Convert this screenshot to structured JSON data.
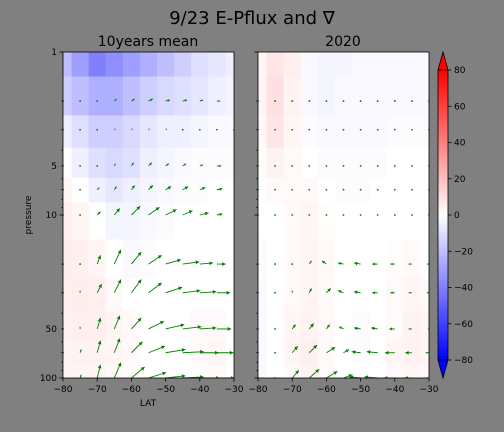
{
  "figure": {
    "suptitle": "9/23 E-Pflux and ∇",
    "background": "#808080",
    "arrow_color": "#008000"
  },
  "chart_data": [
    {
      "type": "heatmap",
      "title": "10years mean",
      "xlabel": "LAT",
      "ylabel": "pressure",
      "xlim": [
        -80,
        -30
      ],
      "ylim": [
        100,
        1
      ],
      "yscale": "log",
      "x_ticks": [
        -80,
        -70,
        -60,
        -50,
        -40,
        -30
      ],
      "x_tick_labels": [
        "−80",
        "−70",
        "−60",
        "−50",
        "−40",
        "−30"
      ],
      "y_ticks": [
        1,
        5,
        10,
        50,
        100
      ],
      "y_tick_labels": [
        "1",
        "5",
        "10",
        "50",
        "100"
      ],
      "field": {
        "lat": [
          -80,
          -75,
          -70,
          -65,
          -60,
          -55,
          -50,
          -45,
          -40,
          -35,
          -30
        ],
        "levels": [
          1,
          2,
          3,
          5,
          7,
          10,
          20,
          30,
          50,
          70,
          100
        ],
        "values": [
          [
            -20,
            -30,
            -40,
            -35,
            -30,
            -25,
            -20,
            -15,
            -10,
            -8,
            -5
          ],
          [
            -15,
            -20,
            -25,
            -25,
            -20,
            -15,
            -12,
            -10,
            -8,
            -5,
            -3
          ],
          [
            -5,
            -10,
            -15,
            -15,
            -12,
            -8,
            -5,
            -5,
            -3,
            -2,
            -2
          ],
          [
            0,
            -5,
            -10,
            -12,
            -10,
            -5,
            -3,
            -2,
            -1,
            -1,
            -1
          ],
          [
            3,
            0,
            -5,
            -8,
            -5,
            -3,
            -2,
            -1,
            -1,
            0,
            0
          ],
          [
            5,
            3,
            0,
            -3,
            -3,
            -2,
            -1,
            0,
            0,
            0,
            0
          ],
          [
            6,
            5,
            3,
            0,
            -2,
            -1,
            0,
            0,
            0,
            0,
            0
          ],
          [
            5,
            6,
            5,
            2,
            0,
            0,
            0,
            0,
            0,
            0,
            0
          ],
          [
            4,
            5,
            5,
            3,
            2,
            0,
            0,
            0,
            2,
            2,
            0
          ],
          [
            3,
            4,
            4,
            3,
            2,
            0,
            0,
            0,
            2,
            3,
            0
          ],
          [
            3,
            3,
            3,
            2,
            1,
            0,
            0,
            0,
            1,
            2,
            0
          ]
        ]
      },
      "arrows": {
        "lat": [
          -80,
          -75,
          -70,
          -65,
          -60,
          -55,
          -50,
          -45,
          -40,
          -35,
          -30
        ],
        "levels": [
          2,
          3,
          5,
          7,
          10,
          20,
          30,
          50,
          70,
          100
        ],
        "u": [
          [
            0,
            0,
            0,
            0.2,
            0.3,
            0.4,
            0.4,
            0.4,
            0.3,
            0.3,
            0.3
          ],
          [
            0,
            0,
            0,
            0.1,
            0.1,
            0.1,
            0.1,
            0.1,
            0,
            0,
            0
          ],
          [
            0,
            0,
            0,
            0.1,
            0.2,
            0.3,
            0.3,
            0.3,
            0.3,
            0.4,
            0.3
          ],
          [
            0,
            0,
            0.2,
            0.2,
            0.3,
            0.4,
            0.5,
            0.5,
            0.5,
            0.5,
            0.3
          ],
          [
            0,
            0,
            0.3,
            0.5,
            0.8,
            1.0,
            1.0,
            0.9,
            0.8,
            0.5,
            0.3
          ],
          [
            0,
            0,
            0.3,
            0.6,
            0.9,
            1.2,
            1.4,
            1.5,
            1.2,
            0.8,
            0.5
          ],
          [
            0,
            0,
            0.4,
            0.6,
            0.9,
            1.2,
            1.5,
            1.6,
            1.5,
            1.2,
            0.6
          ],
          [
            0,
            0,
            0.3,
            0.5,
            0.9,
            1.4,
            1.7,
            1.7,
            1.5,
            1.3,
            0.8
          ],
          [
            0,
            0.1,
            0.3,
            0.5,
            1.0,
            1.5,
            1.8,
            1.9,
            1.7,
            1.5,
            1.0
          ],
          [
            0,
            0.1,
            0.3,
            0.6,
            1.2,
            1.6,
            1.8,
            1.9,
            1.8,
            1.6,
            1.2
          ]
        ],
        "v": [
          [
            0,
            0,
            0,
            0.2,
            0.2,
            0.2,
            0.1,
            0.1,
            0.1,
            0,
            0
          ],
          [
            0,
            0,
            0,
            0.1,
            0.1,
            0.1,
            0.1,
            0,
            0,
            0,
            0
          ],
          [
            0,
            0,
            0,
            0.2,
            0.3,
            0.3,
            0.2,
            0.2,
            0.1,
            0,
            0
          ],
          [
            0,
            0,
            0.2,
            0.3,
            0.4,
            0.4,
            0.3,
            0.3,
            0.2,
            0.1,
            0
          ],
          [
            0,
            0,
            0.3,
            0.6,
            0.8,
            0.7,
            0.5,
            0.4,
            0.2,
            0.1,
            0
          ],
          [
            0,
            0.1,
            0.8,
            1.3,
            1.1,
            0.8,
            0.4,
            0.2,
            0.1,
            0,
            0
          ],
          [
            0,
            0.2,
            0.8,
            1.2,
            1.2,
            0.9,
            0.5,
            0.2,
            0.1,
            0,
            0
          ],
          [
            0,
            0.2,
            1.0,
            1.2,
            1.0,
            0.7,
            0.4,
            0.2,
            0.1,
            0,
            0
          ],
          [
            0,
            0.3,
            1.1,
            1.3,
            1.0,
            0.6,
            0.3,
            0.1,
            0,
            0,
            0
          ],
          [
            0,
            0.3,
            1.2,
            1.4,
            1.0,
            0.5,
            0.2,
            0.1,
            0,
            0,
            0
          ]
        ]
      }
    },
    {
      "type": "heatmap",
      "title": "2020",
      "xlabel": "",
      "ylabel": "",
      "xlim": [
        -80,
        -30
      ],
      "ylim": [
        100,
        1
      ],
      "yscale": "log",
      "x_ticks": [
        -80,
        -70,
        -60,
        -50,
        -40,
        -30
      ],
      "x_tick_labels": [
        "−80",
        "−70",
        "−60",
        "−50",
        "−40",
        "−30"
      ],
      "field": {
        "lat": [
          -80,
          -75,
          -70,
          -65,
          -60,
          -55,
          -50,
          -45,
          -40,
          -35,
          -30
        ],
        "levels": [
          1,
          2,
          3,
          5,
          7,
          10,
          20,
          30,
          50,
          70,
          100
        ],
        "values": [
          [
            3,
            8,
            5,
            -2,
            -3,
            -3,
            -2,
            -2,
            -2,
            -2,
            -2
          ],
          [
            3,
            10,
            4,
            -2,
            -3,
            -2,
            -2,
            -2,
            -2,
            -2,
            -2
          ],
          [
            2,
            8,
            3,
            -1,
            -2,
            -2,
            -2,
            -2,
            -1,
            -1,
            -1
          ],
          [
            1,
            4,
            2,
            0,
            -1,
            -1,
            -1,
            -1,
            0,
            0,
            0
          ],
          [
            0,
            2,
            2,
            2,
            0,
            -1,
            -1,
            0,
            0,
            0,
            0
          ],
          [
            0,
            0,
            2,
            3,
            1,
            0,
            0,
            0,
            0,
            0,
            0
          ],
          [
            -1,
            0,
            2,
            3,
            2,
            0,
            0,
            0,
            1,
            2,
            0
          ],
          [
            -2,
            0,
            2,
            3,
            2,
            0,
            0,
            0,
            2,
            3,
            2
          ],
          [
            -2,
            0,
            3,
            4,
            2,
            0,
            -1,
            0,
            2,
            4,
            3
          ],
          [
            -2,
            0,
            3,
            5,
            2,
            0,
            -1,
            0,
            3,
            4,
            3
          ],
          [
            -2,
            0,
            2,
            4,
            2,
            0,
            0,
            0,
            2,
            3,
            2
          ]
        ]
      },
      "arrows": {
        "lat": [
          -80,
          -75,
          -70,
          -65,
          -60,
          -55,
          -50,
          -45,
          -40,
          -35,
          -30
        ],
        "levels": [
          2,
          3,
          5,
          7,
          10,
          20,
          30,
          50,
          70,
          100
        ],
        "u": [
          [
            0,
            0,
            0,
            0,
            0,
            0,
            0,
            0,
            0,
            0,
            0
          ],
          [
            0,
            0,
            0,
            0,
            0,
            0,
            0,
            0,
            0,
            0,
            0
          ],
          [
            0,
            0,
            0,
            0,
            0,
            0,
            0,
            0,
            0,
            0,
            0
          ],
          [
            0,
            0,
            0,
            0,
            0,
            0,
            0,
            0,
            0,
            0,
            0
          ],
          [
            0,
            0,
            0,
            0,
            0,
            0,
            0,
            0,
            0,
            0,
            0
          ],
          [
            0,
            0,
            0,
            0.2,
            -0.4,
            -0.5,
            -0.6,
            -0.5,
            -0.4,
            -0.3,
            -0.2
          ],
          [
            0,
            0,
            0,
            0.2,
            0.4,
            -0.5,
            -0.6,
            -0.5,
            -0.4,
            -0.3,
            -0.2
          ],
          [
            0,
            0,
            0.3,
            0.4,
            0.3,
            -0.4,
            -0.6,
            -0.6,
            -0.5,
            -0.3,
            -0.1
          ],
          [
            0,
            0,
            0.5,
            0.7,
            0.8,
            0.5,
            -0.8,
            -1.0,
            -0.9,
            -0.6,
            -0.3
          ],
          [
            0,
            0,
            0.6,
            0.9,
            1.0,
            0.8,
            -1.0,
            -1.2,
            -1.0,
            -0.7,
            -0.3
          ]
        ],
        "v": [
          [
            0,
            0,
            0,
            0,
            0,
            0,
            0,
            0,
            0,
            0,
            0
          ],
          [
            0,
            0,
            0,
            0,
            0,
            0,
            0,
            0,
            0,
            0,
            0
          ],
          [
            0,
            0,
            0,
            0,
            0,
            0,
            0,
            0,
            0,
            0,
            0
          ],
          [
            0,
            0,
            0,
            0,
            0,
            0,
            0,
            0,
            0,
            0,
            0
          ],
          [
            0,
            0,
            0,
            0,
            0,
            0,
            0,
            0,
            0,
            0,
            0
          ],
          [
            0,
            0,
            0,
            0.3,
            0.3,
            0.1,
            0.1,
            0,
            0,
            0,
            0
          ],
          [
            0,
            0,
            0.2,
            0.4,
            0.4,
            0.2,
            0.1,
            0,
            0,
            0,
            0
          ],
          [
            0,
            0,
            0.4,
            0.5,
            0.4,
            0.2,
            0.1,
            0.1,
            0,
            0,
            0
          ],
          [
            0,
            0,
            0.6,
            0.7,
            0.5,
            0.3,
            0.1,
            0.1,
            0,
            0,
            0
          ],
          [
            0,
            0,
            0.7,
            0.8,
            0.6,
            0.3,
            0.1,
            0.1,
            0,
            0,
            0
          ]
        ]
      }
    }
  ],
  "colorbar": {
    "range": [
      -80,
      80
    ],
    "ticks": [
      80,
      60,
      40,
      20,
      0,
      -20,
      -40,
      -60,
      -80
    ],
    "tick_labels": [
      "80",
      "60",
      "40",
      "20",
      "0",
      "−20",
      "−40",
      "−60",
      "−80"
    ],
    "colormap": "bwr",
    "min_color": "#0000ff",
    "mid_color": "#ffffff",
    "max_color": "#ff0000",
    "extend": "both"
  }
}
